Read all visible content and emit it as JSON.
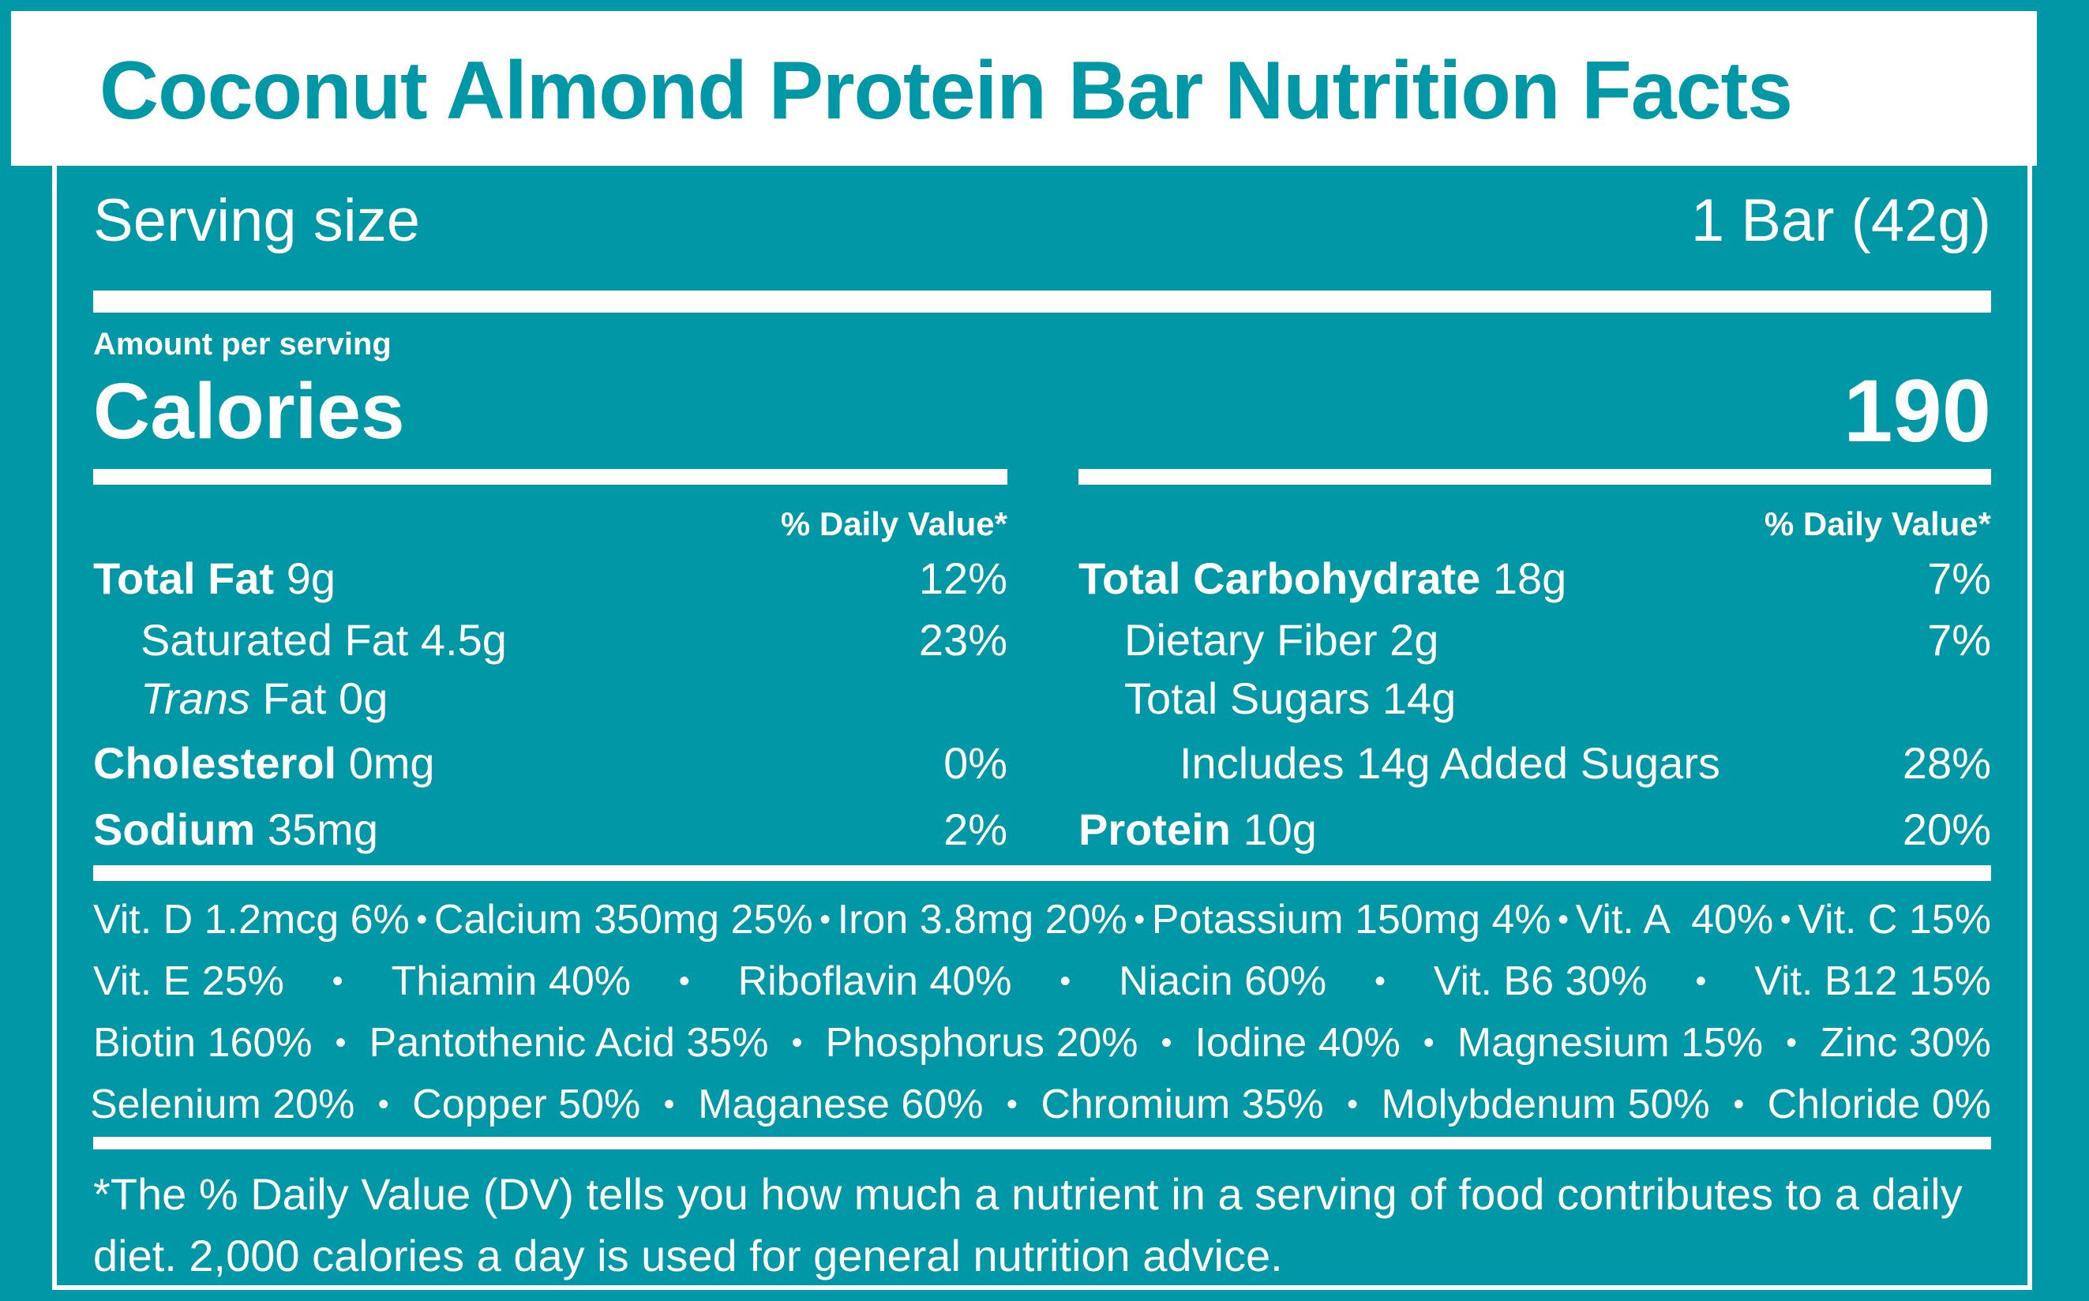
{
  "title": "Coconut Almond Protein Bar Nutrition Facts",
  "serving": {
    "label": "Serving size",
    "value": "1 Bar (42g)"
  },
  "amount_per_serving": "Amount per serving",
  "calories": {
    "label": "Calories",
    "value": "190"
  },
  "dv_header": "% Daily Value*",
  "left_nutrients": [
    {
      "name": "Total Fat",
      "amount": "9g",
      "dv": "12%"
    },
    {
      "name": "Saturated Fat",
      "amount": "4.5g",
      "dv": "23%"
    },
    {
      "name_italic": "Trans",
      "name": "Fat",
      "amount": "0g",
      "dv": ""
    },
    {
      "name": "Cholesterol",
      "amount": "0mg",
      "dv": "0%"
    },
    {
      "name": "Sodium",
      "amount": "35mg",
      "dv": "2%"
    }
  ],
  "right_nutrients": [
    {
      "name": "Total Carbohydrate",
      "amount": "18g",
      "dv": "7%"
    },
    {
      "name": "Dietary Fiber",
      "amount": "2g",
      "dv": "7%"
    },
    {
      "name": "Total Sugars",
      "amount": "14g",
      "dv": ""
    },
    {
      "name": "Includes 14g Added Sugars",
      "amount": "",
      "dv": "28%"
    },
    {
      "name": "Protein",
      "amount": "10g",
      "dv": "20%"
    }
  ],
  "vitamins": [
    [
      "Vit. D 1.2mcg 6%",
      "Calcium 350mg 25%",
      "Iron 3.8mg 20%",
      "Potassium 150mg 4%",
      "Vit. A  40%",
      "Vit. C 15%"
    ],
    [
      "Vit. E 25%",
      "Thiamin 40%",
      "Riboflavin 40%",
      "Niacin 60%",
      "Vit. B6 30%",
      "Vit. B12 15%"
    ],
    [
      "Biotin 160%",
      "Pantothenic Acid 35%",
      "Phosphorus 20%",
      "Iodine 40%",
      "Magnesium 15%",
      "Zinc 30%"
    ],
    [
      "Selenium 20%",
      "Copper 50%",
      "Maganese 60%",
      "Chromium 35%",
      "Molybdenum 50%",
      "Chloride 0%"
    ]
  ],
  "separator": "•",
  "footnote_line1": "*The % Daily Value (DV) tells you how much a nutrient in a serving of food contributes to a daily",
  "footnote_line2": "diet. 2,000 calories a day is used for general nutrition advice.",
  "colors": {
    "background": "#0097a7",
    "text": "#ffffff"
  }
}
